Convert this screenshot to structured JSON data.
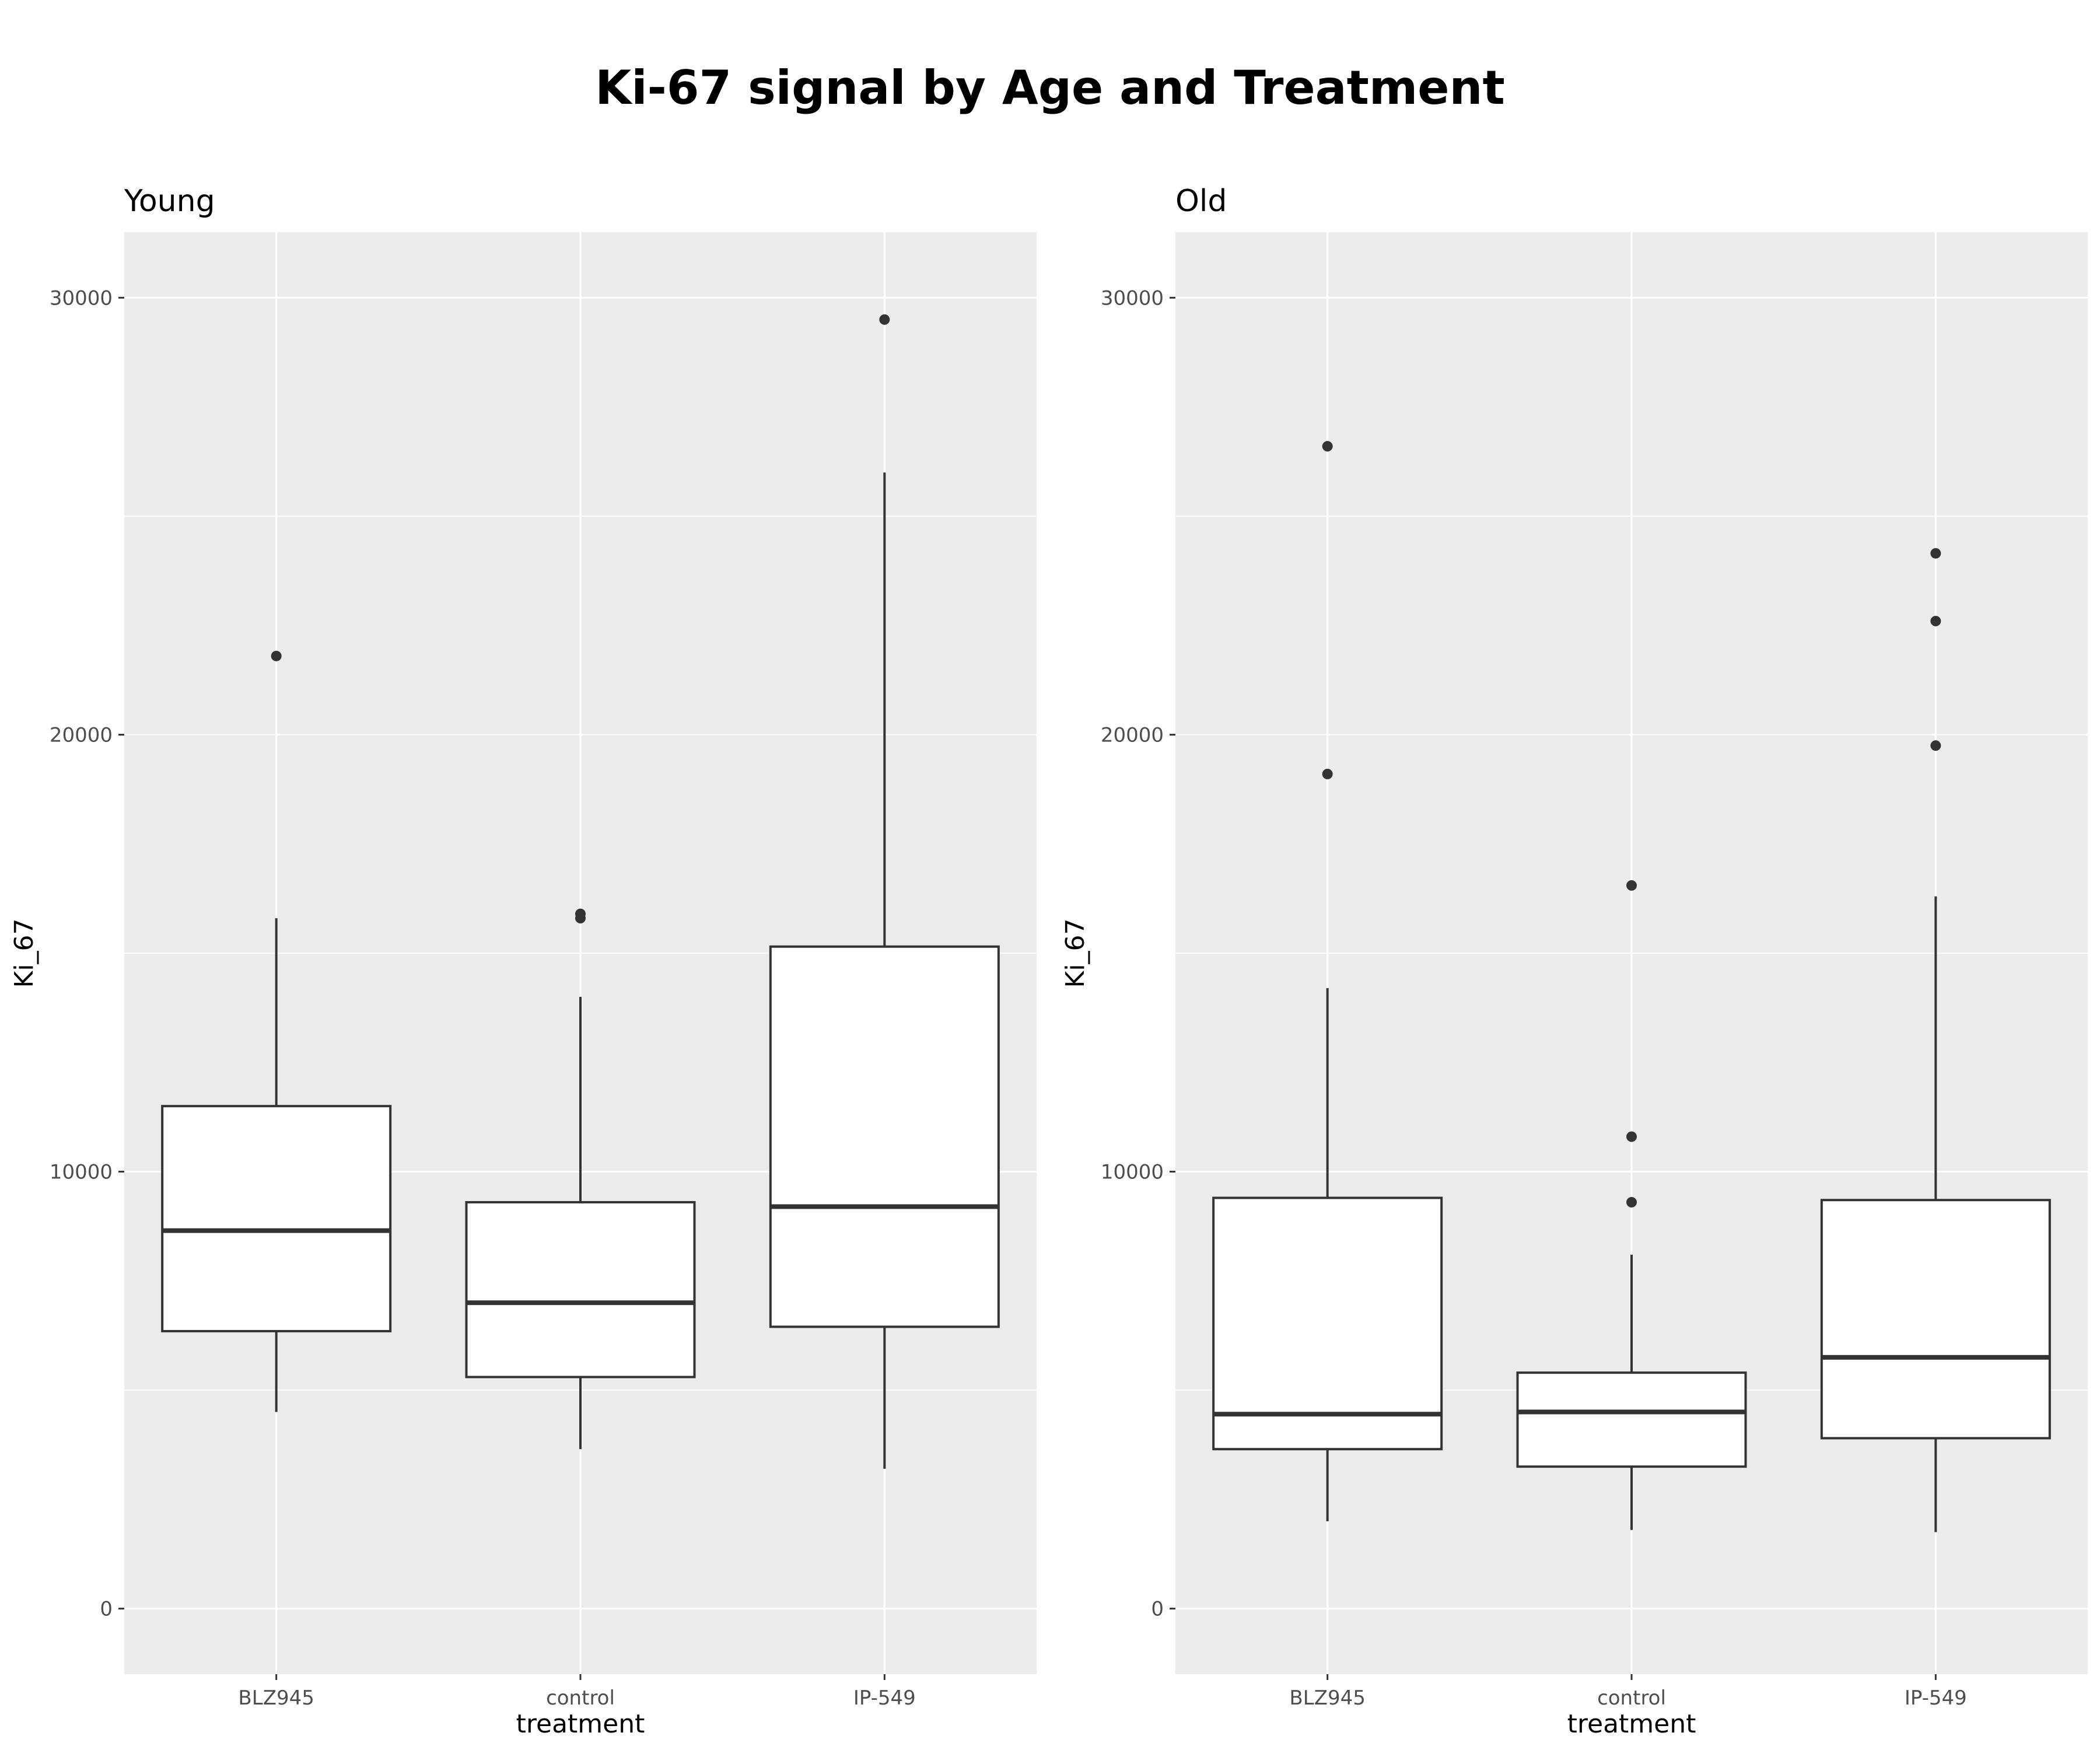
{
  "chart_data": {
    "type": "boxplot",
    "title": "Ki-67 signal by Age and Treatment",
    "colors": {
      "panel_background": "#ebebeb",
      "grid": "#ffffff",
      "box_fill": "#ffffff",
      "box_stroke": "#333333",
      "outlier": "#333333"
    },
    "panels": [
      {
        "title": "Young",
        "xlabel": "treatment",
        "ylabel": "Ki_67",
        "ylim": [
          -1500,
          31500
        ],
        "yticks": [
          0,
          10000,
          20000,
          30000
        ],
        "categories": [
          "BLZ945",
          "control",
          "IP-549"
        ],
        "boxes": [
          {
            "category": "BLZ945",
            "whisker_low": 4500,
            "q1": 6350,
            "median": 8650,
            "q3": 11500,
            "whisker_high": 15800,
            "outliers": [
              21800
            ]
          },
          {
            "category": "control",
            "whisker_low": 3650,
            "q1": 5300,
            "median": 7000,
            "q3": 9300,
            "whisker_high": 14000,
            "outliers": [
              15800,
              15900
            ]
          },
          {
            "category": "IP-549",
            "whisker_low": 3200,
            "q1": 6450,
            "median": 9200,
            "q3": 15150,
            "whisker_high": 26000,
            "outliers": [
              29500
            ]
          }
        ]
      },
      {
        "title": "Old",
        "xlabel": "treatment",
        "ylabel": "Ki_67",
        "ylim": [
          -1500,
          31500
        ],
        "yticks": [
          0,
          10000,
          20000,
          30000
        ],
        "categories": [
          "BLZ945",
          "control",
          "IP-549"
        ],
        "boxes": [
          {
            "category": "BLZ945",
            "whisker_low": 2000,
            "q1": 3650,
            "median": 4450,
            "q3": 9400,
            "whisker_high": 14200,
            "outliers": [
              19100,
              26600
            ]
          },
          {
            "category": "control",
            "whisker_low": 1800,
            "q1": 3250,
            "median": 4500,
            "q3": 5400,
            "whisker_high": 8100,
            "outliers": [
              9300,
              10800,
              16550
            ]
          },
          {
            "category": "IP-549",
            "whisker_low": 1750,
            "q1": 3900,
            "median": 5750,
            "q3": 9350,
            "whisker_high": 16300,
            "outliers": [
              19750,
              22600,
              24150
            ]
          }
        ]
      }
    ]
  }
}
